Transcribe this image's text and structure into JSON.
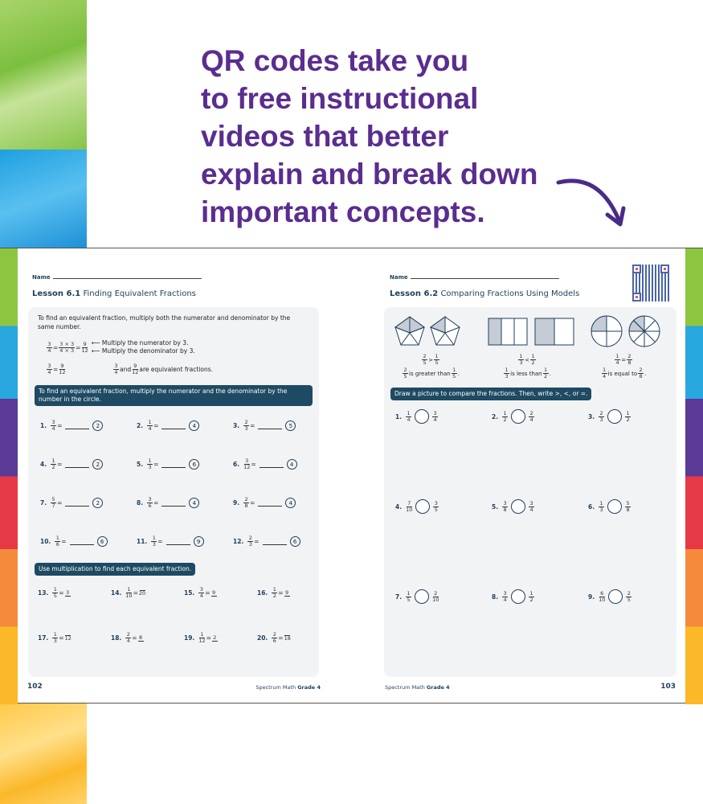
{
  "headline": [
    "QR codes take you",
    "to free instructional",
    "videos that better",
    "explain and break down",
    "important concepts."
  ],
  "colors": {
    "headline": "#5a2d8f",
    "banner": "#1e4a63",
    "text": "#1e3f5a"
  },
  "left_page": {
    "name_label": "Name",
    "lesson_num": "Lesson 6.1",
    "lesson_title": "Finding Equivalent Fractions",
    "intro": "To find an equivalent fraction, multiply both the numerator and denominator by the same number.",
    "example": {
      "note1": "Multiply the numerator by 3.",
      "note2": "Multiply the denominator by 3.",
      "statement": "are equivalent fractions.",
      "and": "and"
    },
    "banner1": "To find an equivalent fraction, multiply the numerator and the denominator by the number in the circle.",
    "problems": [
      {
        "no": "1.",
        "n": "3",
        "d": "4",
        "c": "2"
      },
      {
        "no": "2.",
        "n": "1",
        "d": "4",
        "c": "4"
      },
      {
        "no": "3.",
        "n": "2",
        "d": "3",
        "c": "5"
      },
      {
        "no": "4.",
        "n": "1",
        "d": "2",
        "c": "2"
      },
      {
        "no": "5.",
        "n": "1",
        "d": "3",
        "c": "6"
      },
      {
        "no": "6.",
        "n": "3",
        "d": "12",
        "c": "4"
      },
      {
        "no": "7.",
        "n": "5",
        "d": "7",
        "c": "2"
      },
      {
        "no": "8.",
        "n": "3",
        "d": "6",
        "c": "4"
      },
      {
        "no": "9.",
        "n": "2",
        "d": "8",
        "c": "4"
      },
      {
        "no": "10.",
        "n": "1",
        "d": "6",
        "c": "6"
      },
      {
        "no": "11.",
        "n": "1",
        "d": "3",
        "c": "9"
      },
      {
        "no": "12.",
        "n": "2",
        "d": "3",
        "c": "6"
      }
    ],
    "banner2": "Use multiplication to find each equivalent fraction.",
    "problems2": [
      {
        "no": "13.",
        "n": "1",
        "d": "5",
        "an": "3",
        "ad": ""
      },
      {
        "no": "14.",
        "n": "1",
        "d": "10",
        "an": "",
        "ad": "20"
      },
      {
        "no": "15.",
        "n": "3",
        "d": "4",
        "an": "9",
        "ad": ""
      },
      {
        "no": "16.",
        "n": "1",
        "d": "2",
        "an": "9",
        "ad": ""
      },
      {
        "no": "17.",
        "n": "1",
        "d": "3",
        "an": "",
        "ad": "12"
      },
      {
        "no": "18.",
        "n": "2",
        "d": "4",
        "an": "8",
        "ad": ""
      },
      {
        "no": "19.",
        "n": "1",
        "d": "12",
        "an": "2",
        "ad": ""
      },
      {
        "no": "20.",
        "n": "2",
        "d": "6",
        "an": "",
        "ad": "18"
      }
    ],
    "page_number": "102",
    "footer": "Spectrum Math",
    "footer_grade": "Grade 4"
  },
  "right_page": {
    "name_label": "Name",
    "lesson_num": "Lesson 6.2",
    "lesson_title": "Comparing Fractions Using Models",
    "models": [
      {
        "a": [
          "2",
          "5"
        ],
        "op": ">",
        "b": [
          "1",
          "5"
        ],
        "text": "is greater than"
      },
      {
        "a": [
          "1",
          "3"
        ],
        "op": "<",
        "b": [
          "1",
          "2"
        ],
        "text": "is less than"
      },
      {
        "a": [
          "1",
          "4"
        ],
        "op": "=",
        "b": [
          "2",
          "8"
        ],
        "text": "is equal to"
      }
    ],
    "banner": "Draw a picture to compare the fractions. Then, write >, <, or =.",
    "problems": [
      {
        "no": "1.",
        "a": [
          "1",
          "4"
        ],
        "b": [
          "3",
          "4"
        ]
      },
      {
        "no": "2.",
        "a": [
          "1",
          "2"
        ],
        "b": [
          "2",
          "4"
        ]
      },
      {
        "no": "3.",
        "a": [
          "2",
          "3"
        ],
        "b": [
          "1",
          "2"
        ]
      },
      {
        "no": "4.",
        "a": [
          "7",
          "10"
        ],
        "b": [
          "3",
          "5"
        ]
      },
      {
        "no": "5.",
        "a": [
          "3",
          "8"
        ],
        "b": [
          "3",
          "4"
        ]
      },
      {
        "no": "6.",
        "a": [
          "1",
          "3"
        ],
        "b": [
          "5",
          "8"
        ]
      },
      {
        "no": "7.",
        "a": [
          "1",
          "5"
        ],
        "b": [
          "2",
          "10"
        ]
      },
      {
        "no": "8.",
        "a": [
          "3",
          "4"
        ],
        "b": [
          "1",
          "2"
        ]
      },
      {
        "no": "9.",
        "a": [
          "6",
          "10"
        ],
        "b": [
          "2",
          "5"
        ]
      }
    ],
    "page_number": "103",
    "footer": "Spectrum Math",
    "footer_grade": "Grade 4"
  }
}
